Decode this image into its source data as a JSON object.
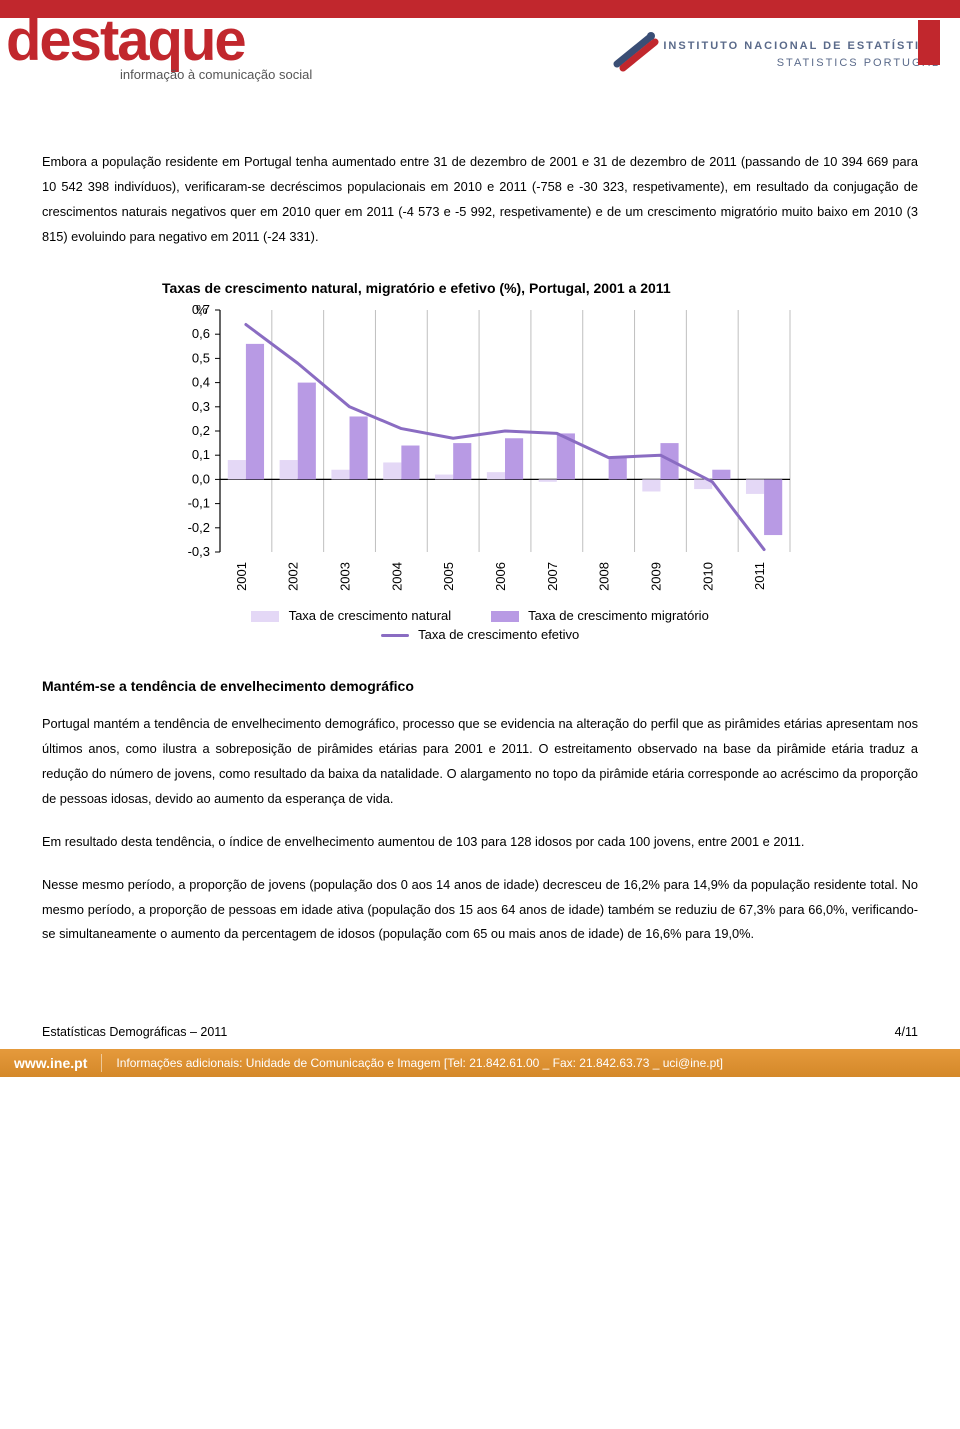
{
  "header": {
    "logo_text": "destaque",
    "logo_subtitle": "informação à comunicação social",
    "ine_line1": "INSTITUTO NACIONAL DE ESTATÍSTICA",
    "ine_line2": "STATISTICS PORTUGAL"
  },
  "paragraphs": {
    "p1": "Embora a população residente em Portugal tenha aumentado entre 31 de dezembro de 2001 e 31 de dezembro de 2011 (passando de 10 394 669 para 10 542 398 indivíduos), verificaram-se decréscimos populacionais em 2010 e 2011 (-758 e -30 323, respetivamente), em resultado da conjugação de crescimentos naturais negativos quer em 2010 quer em 2011 (-4 573 e -5 992, respetivamente) e de um crescimento migratório muito baixo em 2010 (3 815) evoluindo para negativo em 2011 (-24 331).",
    "p2": "Portugal mantém a tendência de envelhecimento demográfico, processo que se evidencia na alteração do perfil que as pirâmides etárias apresentam nos últimos anos, como ilustra a sobreposição de pirâmides etárias para 2001 e 2011. O estreitamento observado na base da pirâmide etária traduz a redução do número de jovens, como resultado da baixa da natalidade. O alargamento no topo da pirâmide etária corresponde ao acréscimo da proporção de pessoas idosas, devido ao aumento da esperança de vida.",
    "p3": "Em resultado desta tendência, o índice de envelhecimento aumentou de 103 para 128 idosos por cada 100 jovens, entre 2001 e 2011.",
    "p4": "Nesse mesmo período, a proporção de jovens (população dos 0 aos 14 anos de idade) decresceu de 16,2% para 14,9% da população residente total. No mesmo período, a proporção de pessoas em idade ativa (população dos 15 aos 64 anos de idade) também se reduziu de 67,3% para 66,0%, verificando-se simultaneamente o aumento da percentagem de idosos (população com 65 ou mais anos de idade) de 16,6% para 19,0%."
  },
  "section_heading": "Mantém-se a tendência de envelhecimento demográfico",
  "chart": {
    "title": "Taxas de crescimento natural, migratório e efetivo (%), Portugal, 2001 a 2011",
    "y_unit": "%",
    "categories": [
      "2001",
      "2002",
      "2003",
      "2004",
      "2005",
      "2006",
      "2007",
      "2008",
      "2009",
      "2010",
      "2011"
    ],
    "series_natural": [
      0.08,
      0.08,
      0.04,
      0.07,
      0.02,
      0.03,
      -0.01,
      0.0,
      -0.05,
      -0.04,
      -0.06
    ],
    "series_migratorio": [
      0.56,
      0.4,
      0.26,
      0.14,
      0.15,
      0.17,
      0.19,
      0.09,
      0.15,
      0.04,
      -0.23
    ],
    "series_efetivo": [
      0.64,
      0.48,
      0.3,
      0.21,
      0.17,
      0.2,
      0.19,
      0.09,
      0.1,
      -0.01,
      -0.29
    ],
    "ylim": [
      -0.3,
      0.7
    ],
    "ytick_step": 0.1,
    "yticks_labels": [
      "-0,3",
      "-0,2",
      "-0,1",
      "0,0",
      "0,1",
      "0,2",
      "0,3",
      "0,4",
      "0,5",
      "0,6",
      "0,7"
    ],
    "colors": {
      "natural": "#e4d8f6",
      "migratorio": "#b89ae4",
      "efetivo_line": "#8a6cc2",
      "axis": "#000000",
      "grid": "#bfbfbf",
      "tick_text": "#000000"
    },
    "legend": {
      "natural": "Taxa de crescimento natural",
      "migratorio": "Taxa de crescimento migratório",
      "efetivo": "Taxa de crescimento efetivo"
    },
    "font_size_axis": 13,
    "font_size_title": 14,
    "bar_group_width": 0.7,
    "line_width": 3
  },
  "footer": {
    "left": "Estatísticas Demográficas – 2011",
    "right": "4/11"
  },
  "bottom_bar": {
    "site": "www.ine.pt",
    "info": "Informações adicionais: Unidade de Comunicação e Imagem [Tel: 21.842.61.00 _ Fax: 21.842.63.73 _ uci@ine.pt]"
  }
}
